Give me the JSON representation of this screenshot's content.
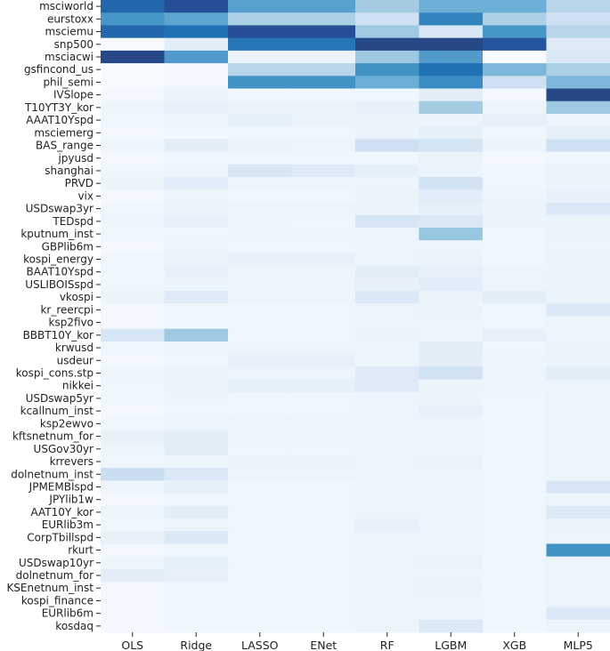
{
  "chart_data": {
    "type": "heatmap",
    "columns": [
      "OLS",
      "Ridge",
      "LASSO",
      "ENet",
      "RF",
      "LGBM",
      "XGB",
      "MLP5"
    ],
    "rows": [
      "msciworld",
      "eurstoxx",
      "msciemu",
      "snp500",
      "msciacwi",
      "gsfincond_us",
      "phil_semi",
      "IVSlope",
      "T10YT3Y_kor",
      "AAAT10Yspd",
      "msciemerg",
      "BAS_range",
      "jpyusd",
      "shanghai",
      "PRVD",
      "vix",
      "USDswap3yr",
      "TEDspd",
      "kputnum_inst",
      "GBPlib6m",
      "kospi_energy",
      "BAAT10Yspd",
      "USLIBOISspd",
      "vkospi",
      "kr_reercpi",
      "ksp2fivo",
      "BBBT10Y_kor",
      "krwusd",
      "usdeur",
      "kospi_cons.stp",
      "nikkei",
      "USDswap5yr",
      "kcallnum_inst",
      "ksp2ewvo",
      "kftsnetnum_for",
      "USGov30yr",
      "krrevers",
      "dolnetnum_inst",
      "JPMEMBIspd",
      "JPYlib1w",
      "AAT10Y_kor",
      "EURlib3m",
      "CorpTbillspd",
      "rkurt",
      "USDswap10yr",
      "dolnetnum_for",
      "KSEnetnum_inst",
      "kospi_finance",
      "EURlib6m",
      "kosdaq"
    ],
    "values": [
      [
        0.85,
        0.92,
        0.62,
        0.62,
        0.38,
        0.55,
        0.55,
        0.3
      ],
      [
        0.68,
        0.6,
        0.35,
        0.35,
        0.2,
        0.75,
        0.35,
        0.2
      ],
      [
        0.85,
        0.82,
        0.92,
        0.92,
        0.4,
        0.15,
        0.68,
        0.3
      ],
      [
        0.0,
        0.08,
        0.8,
        0.8,
        0.95,
        0.95,
        0.9,
        0.1
      ],
      [
        0.95,
        0.65,
        0.05,
        0.05,
        0.4,
        0.65,
        0.0,
        0.12
      ],
      [
        0.0,
        0.02,
        0.3,
        0.3,
        0.7,
        0.82,
        0.5,
        0.35
      ],
      [
        0.0,
        0.02,
        0.7,
        0.7,
        0.55,
        0.72,
        0.2,
        0.5
      ],
      [
        0.02,
        0.05,
        0.03,
        0.03,
        0.03,
        0.08,
        0.02,
        0.95
      ],
      [
        0.04,
        0.06,
        0.05,
        0.05,
        0.06,
        0.38,
        0.04,
        0.4
      ],
      [
        0.03,
        0.04,
        0.07,
        0.05,
        0.05,
        0.05,
        0.06,
        0.04
      ],
      [
        0.02,
        0.03,
        0.03,
        0.03,
        0.05,
        0.07,
        0.03,
        0.07
      ],
      [
        0.04,
        0.08,
        0.05,
        0.04,
        0.2,
        0.16,
        0.05,
        0.2
      ],
      [
        0.02,
        0.03,
        0.03,
        0.03,
        0.03,
        0.05,
        0.02,
        0.03
      ],
      [
        0.03,
        0.04,
        0.15,
        0.1,
        0.07,
        0.04,
        0.03,
        0.05
      ],
      [
        0.05,
        0.09,
        0.04,
        0.04,
        0.04,
        0.18,
        0.03,
        0.05
      ],
      [
        0.02,
        0.04,
        0.03,
        0.03,
        0.05,
        0.09,
        0.04,
        0.06
      ],
      [
        0.03,
        0.05,
        0.04,
        0.04,
        0.05,
        0.07,
        0.05,
        0.12
      ],
      [
        0.04,
        0.06,
        0.04,
        0.03,
        0.15,
        0.12,
        0.05,
        0.05
      ],
      [
        0.03,
        0.03,
        0.04,
        0.04,
        0.04,
        0.42,
        0.03,
        0.05
      ],
      [
        0.02,
        0.04,
        0.03,
        0.03,
        0.04,
        0.04,
        0.03,
        0.04
      ],
      [
        0.03,
        0.05,
        0.06,
        0.06,
        0.04,
        0.05,
        0.03,
        0.05
      ],
      [
        0.03,
        0.06,
        0.04,
        0.04,
        0.08,
        0.06,
        0.04,
        0.05
      ],
      [
        0.03,
        0.04,
        0.04,
        0.04,
        0.06,
        0.09,
        0.04,
        0.05
      ],
      [
        0.05,
        0.1,
        0.04,
        0.04,
        0.12,
        0.05,
        0.08,
        0.05
      ],
      [
        0.02,
        0.03,
        0.03,
        0.03,
        0.04,
        0.05,
        0.03,
        0.12
      ],
      [
        0.02,
        0.03,
        0.03,
        0.03,
        0.04,
        0.04,
        0.03,
        0.04
      ],
      [
        0.15,
        0.4,
        0.03,
        0.03,
        0.05,
        0.04,
        0.06,
        0.04
      ],
      [
        0.03,
        0.04,
        0.04,
        0.04,
        0.04,
        0.08,
        0.03,
        0.05
      ],
      [
        0.02,
        0.03,
        0.06,
        0.06,
        0.04,
        0.08,
        0.04,
        0.05
      ],
      [
        0.04,
        0.05,
        0.04,
        0.04,
        0.1,
        0.18,
        0.04,
        0.08
      ],
      [
        0.03,
        0.05,
        0.07,
        0.07,
        0.1,
        0.05,
        0.04,
        0.04
      ],
      [
        0.03,
        0.04,
        0.03,
        0.03,
        0.04,
        0.04,
        0.03,
        0.04
      ],
      [
        0.02,
        0.03,
        0.03,
        0.03,
        0.04,
        0.06,
        0.03,
        0.04
      ],
      [
        0.03,
        0.04,
        0.04,
        0.04,
        0.04,
        0.04,
        0.03,
        0.04
      ],
      [
        0.06,
        0.08,
        0.04,
        0.04,
        0.04,
        0.04,
        0.03,
        0.04
      ],
      [
        0.04,
        0.08,
        0.03,
        0.03,
        0.04,
        0.04,
        0.03,
        0.04
      ],
      [
        0.03,
        0.04,
        0.05,
        0.05,
        0.04,
        0.05,
        0.03,
        0.04
      ],
      [
        0.22,
        0.12,
        0.04,
        0.04,
        0.04,
        0.04,
        0.03,
        0.04
      ],
      [
        0.04,
        0.07,
        0.03,
        0.03,
        0.04,
        0.04,
        0.03,
        0.15
      ],
      [
        0.02,
        0.03,
        0.03,
        0.03,
        0.04,
        0.04,
        0.03,
        0.04
      ],
      [
        0.04,
        0.08,
        0.03,
        0.03,
        0.04,
        0.04,
        0.03,
        0.12
      ],
      [
        0.03,
        0.04,
        0.03,
        0.03,
        0.06,
        0.04,
        0.03,
        0.05
      ],
      [
        0.06,
        0.12,
        0.03,
        0.03,
        0.04,
        0.04,
        0.03,
        0.04
      ],
      [
        0.02,
        0.03,
        0.03,
        0.03,
        0.04,
        0.04,
        0.03,
        0.7
      ],
      [
        0.04,
        0.07,
        0.03,
        0.03,
        0.04,
        0.05,
        0.03,
        0.04
      ],
      [
        0.08,
        0.06,
        0.03,
        0.03,
        0.04,
        0.04,
        0.03,
        0.04
      ],
      [
        0.02,
        0.03,
        0.03,
        0.03,
        0.04,
        0.05,
        0.03,
        0.04
      ],
      [
        0.02,
        0.03,
        0.03,
        0.03,
        0.04,
        0.04,
        0.03,
        0.04
      ],
      [
        0.02,
        0.03,
        0.03,
        0.03,
        0.04,
        0.04,
        0.03,
        0.12
      ],
      [
        0.02,
        0.03,
        0.03,
        0.03,
        0.04,
        0.12,
        0.03,
        0.04
      ]
    ],
    "value_range": [
      0,
      1
    ],
    "colormap": "Blues",
    "colors": {
      "low": "#f7fbff",
      "high": "#2a3f6e"
    },
    "title": "",
    "xlabel": "",
    "ylabel": "",
    "grid": false,
    "legend": "none"
  }
}
